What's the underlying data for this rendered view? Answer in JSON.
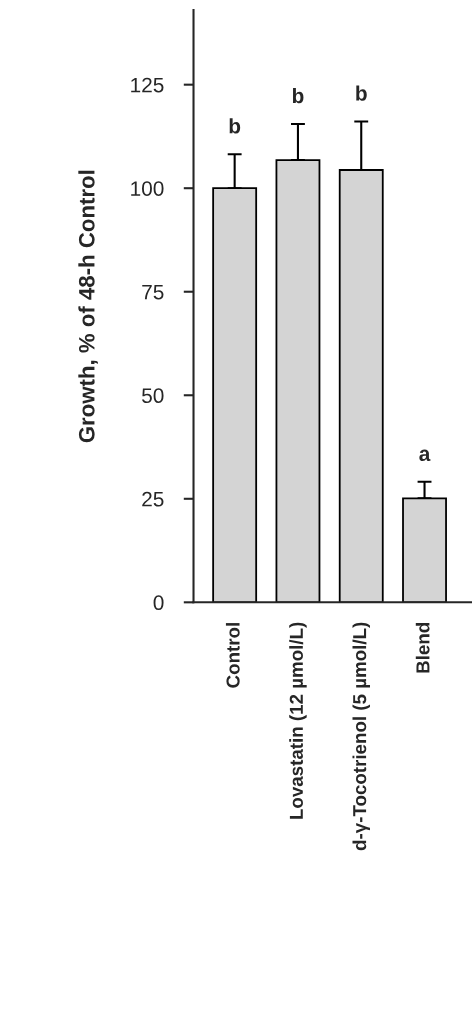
{
  "chart_data": {
    "type": "bar",
    "ylabel": "Growth, % of 48-h Control",
    "categories": [
      "Control",
      "Lovastatin (12 µmol/L)",
      "d-γ-Tocotrienol (5 µmol/L)",
      "Blend"
    ],
    "values": [
      100,
      106.8,
      104.4,
      25.1
    ],
    "errors": [
      [
        100,
        108.2
      ],
      [
        106.8,
        115.5
      ],
      [
        104.4,
        116.1
      ],
      [
        25.1,
        29.1
      ]
    ],
    "color": "#d4d4d4",
    "ylim": [
      0,
      143
    ],
    "yticks": [
      0,
      25,
      50,
      75,
      100,
      125
    ],
    "grid": false,
    "annotations": [
      "b",
      "b",
      "b",
      "a"
    ]
  }
}
